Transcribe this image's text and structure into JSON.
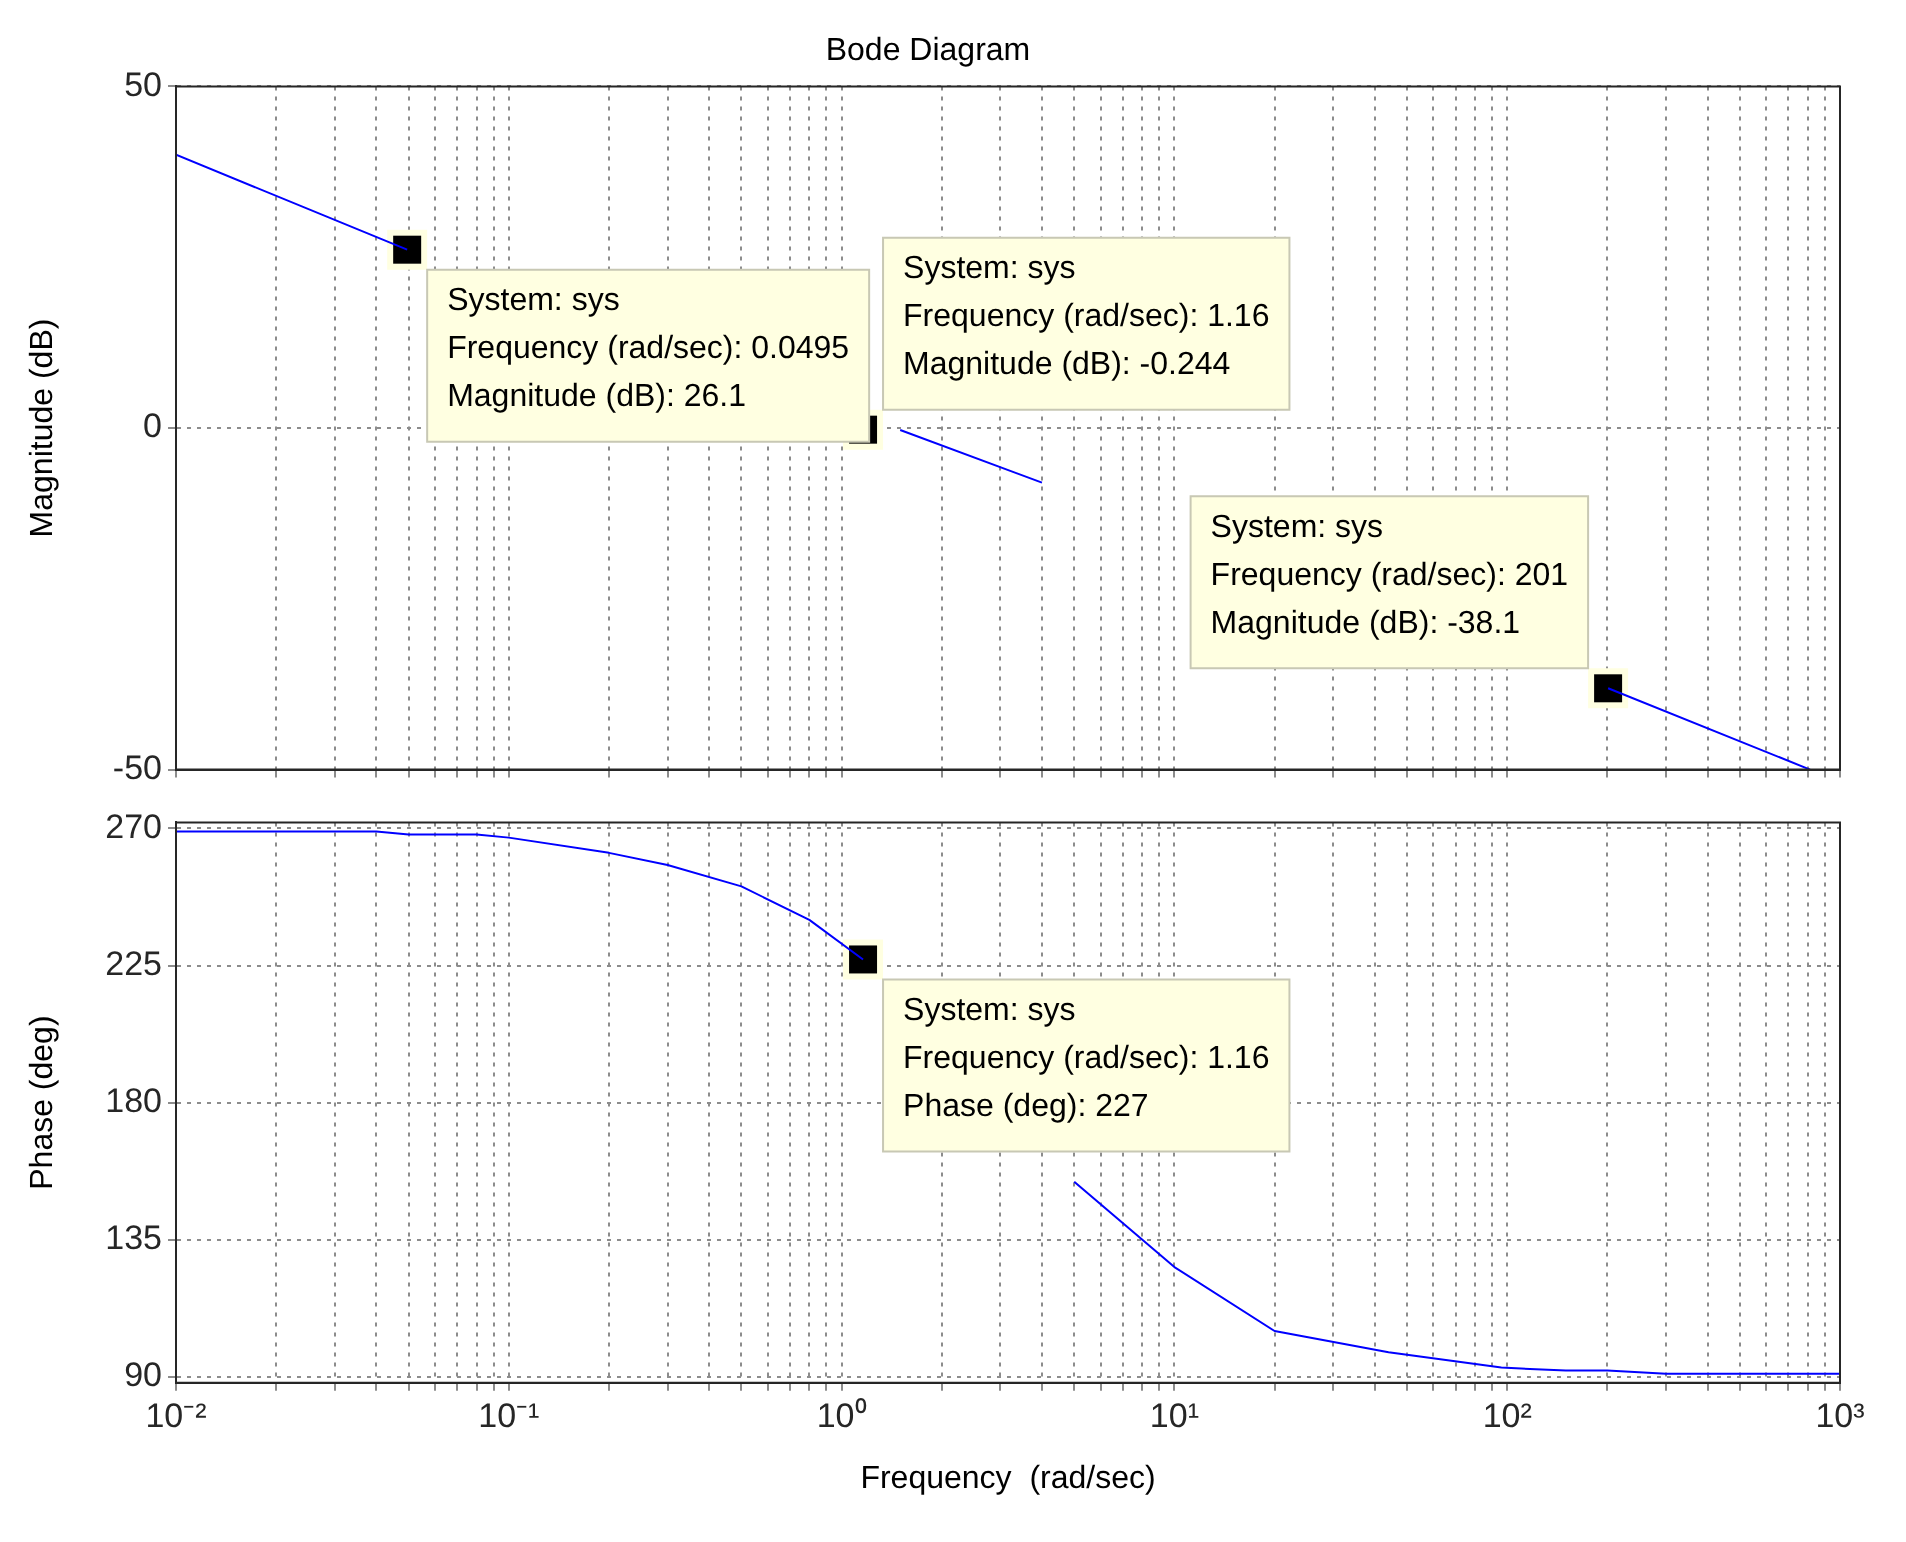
{
  "chart_data": [
    {
      "type": "line",
      "title": "Bode Diagram",
      "ylabel": "Magnitude (dB)",
      "log": "x",
      "grid": true,
      "tick_labels": "y",
      "x": [
        0.01,
        0.0495,
        0.3,
        1.5,
        4,
        30,
        201,
        813
      ],
      "series": [
        {
          "color": "#0000ff",
          "values": [
            40,
            26.1,
            null,
            -0.3,
            -8,
            null,
            -38.1,
            -50
          ]
        }
      ],
      "xlim": [
        0.01,
        1000
      ],
      "ylim": [
        -50,
        50
      ],
      "yticks": [
        -50,
        0,
        50
      ],
      "xticks": [
        {
          "value": 0.01,
          "label": null
        },
        {
          "value": 0.02,
          "label": null
        },
        {
          "value": 0.03,
          "label": null
        },
        {
          "value": 0.04,
          "label": null
        },
        {
          "value": 0.05,
          "label": null
        },
        {
          "value": 0.06,
          "label": null
        },
        {
          "value": 0.07,
          "label": null
        },
        {
          "value": 0.08,
          "label": null
        },
        {
          "value": 0.09,
          "label": null
        },
        {
          "value": 0.1,
          "label": null
        },
        {
          "value": 0.2,
          "label": null
        },
        {
          "value": 0.3,
          "label": null
        },
        {
          "value": 0.4,
          "label": null
        },
        {
          "value": 0.5,
          "label": null
        },
        {
          "value": 0.6,
          "label": null
        },
        {
          "value": 0.7,
          "label": null
        },
        {
          "value": 0.8,
          "label": null
        },
        {
          "value": 0.9,
          "label": null
        },
        {
          "value": 1,
          "label": null
        },
        {
          "value": 2,
          "label": null
        },
        {
          "value": 3,
          "label": null
        },
        {
          "value": 4,
          "label": null
        },
        {
          "value": 5,
          "label": null
        },
        {
          "value": 6,
          "label": null
        },
        {
          "value": 7,
          "label": null
        },
        {
          "value": 8,
          "label": null
        },
        {
          "value": 9,
          "label": null
        },
        {
          "value": 10,
          "label": null
        },
        {
          "value": 20,
          "label": null
        },
        {
          "value": 30,
          "label": null
        },
        {
          "value": 40,
          "label": null
        },
        {
          "value": 50,
          "label": null
        },
        {
          "value": 60,
          "label": null
        },
        {
          "value": 70,
          "label": null
        },
        {
          "value": 80,
          "label": null
        },
        {
          "value": 90,
          "label": null
        },
        {
          "value": 100,
          "label": null
        },
        {
          "value": 200,
          "label": null
        },
        {
          "value": 300,
          "label": null
        },
        {
          "value": 400,
          "label": null
        },
        {
          "value": 500,
          "label": null
        },
        {
          "value": 600,
          "label": null
        },
        {
          "value": 700,
          "label": null
        },
        {
          "value": 800,
          "label": null
        },
        {
          "value": 900,
          "label": null
        },
        {
          "value": 1000,
          "label": null
        }
      ],
      "annotations": [
        {
          "text": "System: sys\nFrequency (rad/sec): 0.0495\nMagnitude (dB): 26.1",
          "x": 0.0495,
          "y": 26.1
        },
        {
          "text": "System: sys\nFrequency (rad/sec): 1.16\nMagnitude (dB): -0.244",
          "x": 1.16,
          "y": -0.244
        },
        {
          "text": "System: sys\nFrequency (rad/sec): 201\nMagnitude (dB): -38.1",
          "x": 201,
          "y": -38.1
        }
      ]
    },
    {
      "type": "line",
      "ylabel": "Phase (deg)",
      "xlabel": "Frequency  (rad/sec)",
      "log": "x",
      "grid": true,
      "x": [
        0.01,
        0.04,
        0.05,
        0.08,
        0.1,
        0.2,
        0.3,
        0.5,
        0.8,
        1.16,
        2.5,
        5,
        10,
        20,
        44,
        96,
        150,
        200,
        300,
        1000
      ],
      "series": [
        {
          "color": "#0000ff",
          "values": [
            269,
            269,
            268,
            268,
            267,
            262,
            258,
            251,
            240,
            227,
            null,
            154,
            126,
            105,
            98,
            93,
            92,
            92,
            91,
            91
          ]
        }
      ],
      "xlim": [
        0.01,
        1000
      ],
      "ylim": [
        88,
        272
      ],
      "yticks": [
        90,
        135,
        180,
        225,
        270
      ],
      "xticks": [
        {
          "value": 0.01,
          "label": "10⁻²"
        },
        {
          "value": 0.02,
          "label": null
        },
        {
          "value": 0.03,
          "label": null
        },
        {
          "value": 0.04,
          "label": null
        },
        {
          "value": 0.05,
          "label": null
        },
        {
          "value": 0.06,
          "label": null
        },
        {
          "value": 0.07,
          "label": null
        },
        {
          "value": 0.08,
          "label": null
        },
        {
          "value": 0.09,
          "label": null
        },
        {
          "value": 0.1,
          "label": "10⁻¹"
        },
        {
          "value": 0.2,
          "label": null
        },
        {
          "value": 0.3,
          "label": null
        },
        {
          "value": 0.4,
          "label": null
        },
        {
          "value": 0.5,
          "label": null
        },
        {
          "value": 0.6,
          "label": null
        },
        {
          "value": 0.7,
          "label": null
        },
        {
          "value": 0.8,
          "label": null
        },
        {
          "value": 0.9,
          "label": null
        },
        {
          "value": 1,
          "label": "10⁰"
        },
        {
          "value": 2,
          "label": null
        },
        {
          "value": 3,
          "label": null
        },
        {
          "value": 4,
          "label": null
        },
        {
          "value": 5,
          "label": null
        },
        {
          "value": 6,
          "label": null
        },
        {
          "value": 7,
          "label": null
        },
        {
          "value": 8,
          "label": null
        },
        {
          "value": 9,
          "label": null
        },
        {
          "value": 10,
          "label": "10¹"
        },
        {
          "value": 20,
          "label": null
        },
        {
          "value": 30,
          "label": null
        },
        {
          "value": 40,
          "label": null
        },
        {
          "value": 50,
          "label": null
        },
        {
          "value": 60,
          "label": null
        },
        {
          "value": 70,
          "label": null
        },
        {
          "value": 80,
          "label": null
        },
        {
          "value": 90,
          "label": null
        },
        {
          "value": 100,
          "label": "10²"
        },
        {
          "value": 200,
          "label": null
        },
        {
          "value": 300,
          "label": null
        },
        {
          "value": 400,
          "label": null
        },
        {
          "value": 500,
          "label": null
        },
        {
          "value": 600,
          "label": null
        },
        {
          "value": 700,
          "label": null
        },
        {
          "value": 800,
          "label": null
        },
        {
          "value": 900,
          "label": null
        },
        {
          "value": 1000,
          "label": "10³"
        }
      ],
      "annotations": [
        {
          "text": "System: sys\nFrequency (rad/sec): 1.16\nPhase (deg): 227",
          "x": 1.16,
          "y": 227
        }
      ]
    }
  ]
}
